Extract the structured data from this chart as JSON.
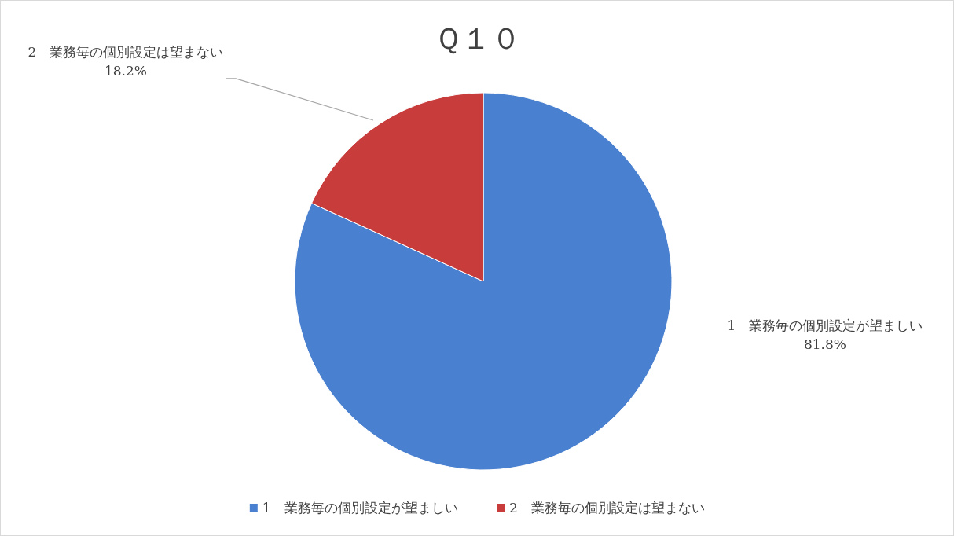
{
  "chart_data": {
    "type": "pie",
    "title": "Ｑ１０",
    "categories": [
      "1　業務毎の個別設定が望ましい",
      "2　業務毎の個別設定は望まない"
    ],
    "values": [
      81.8,
      18.2
    ],
    "colors": [
      "#4a80d0",
      "#c83c3c"
    ],
    "value_labels": [
      "81.8%",
      "18.2%"
    ],
    "legend": "bottom"
  }
}
